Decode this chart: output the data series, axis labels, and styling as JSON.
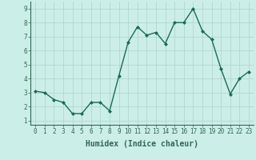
{
  "x": [
    0,
    1,
    2,
    3,
    4,
    5,
    6,
    7,
    8,
    9,
    10,
    11,
    12,
    13,
    14,
    15,
    16,
    17,
    18,
    19,
    20,
    21,
    22,
    23
  ],
  "y": [
    3.1,
    3.0,
    2.5,
    2.3,
    1.5,
    1.5,
    2.3,
    2.3,
    1.7,
    4.2,
    6.6,
    7.7,
    7.1,
    7.3,
    6.5,
    8.0,
    8.0,
    9.0,
    7.4,
    6.8,
    4.7,
    2.9,
    4.0,
    4.5
  ],
  "line_color": "#1a6b5a",
  "marker": "D",
  "marker_size": 2,
  "linewidth": 1.0,
  "bg_color": "#cceee8",
  "grid_color": "#b0d8d0",
  "xlabel": "Humidex (Indice chaleur)",
  "xlabel_fontsize": 7,
  "xlabel_weight": "bold",
  "yticks": [
    1,
    2,
    3,
    4,
    5,
    6,
    7,
    8,
    9
  ],
  "xticks": [
    0,
    1,
    2,
    3,
    4,
    5,
    6,
    7,
    8,
    9,
    10,
    11,
    12,
    13,
    14,
    15,
    16,
    17,
    18,
    19,
    20,
    21,
    22,
    23
  ],
  "ylim": [
    0.7,
    9.5
  ],
  "xlim": [
    -0.5,
    23.5
  ],
  "tick_fontsize": 5.5,
  "spine_color": "#336655"
}
